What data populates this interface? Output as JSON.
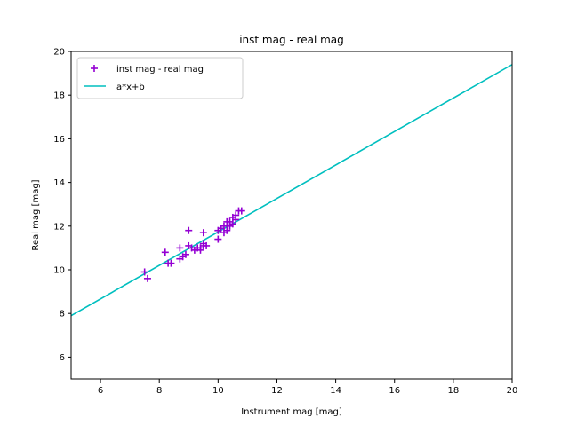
{
  "chart_data": {
    "type": "scatter",
    "title": "inst mag - real mag",
    "xlabel": "Instrument mag [mag]",
    "ylabel": "Real mag [mag]",
    "xlim": [
      5,
      20
    ],
    "ylim": [
      5,
      20
    ],
    "xticks": [
      6,
      8,
      10,
      12,
      14,
      16,
      18,
      20
    ],
    "yticks": [
      6,
      8,
      10,
      12,
      14,
      16,
      18,
      20
    ],
    "grid": false,
    "legend_position": "top-left",
    "series": [
      {
        "name": "inst mag - real mag",
        "kind": "scatter",
        "marker": "plus",
        "color": "#9400d3",
        "x": [
          7.5,
          7.6,
          8.2,
          8.3,
          8.4,
          8.7,
          8.7,
          8.8,
          8.9,
          9.0,
          9.0,
          9.1,
          9.2,
          9.3,
          9.4,
          9.4,
          9.5,
          9.5,
          9.5,
          9.6,
          10.0,
          10.0,
          10.1,
          10.2,
          10.2,
          10.3,
          10.3,
          10.4,
          10.4,
          10.5,
          10.5,
          10.6,
          10.6,
          10.7,
          10.8
        ],
        "y": [
          9.9,
          9.6,
          10.8,
          10.3,
          10.3,
          11.0,
          10.5,
          10.6,
          10.7,
          11.8,
          11.1,
          11.0,
          10.9,
          11.0,
          11.0,
          10.9,
          11.7,
          11.2,
          11.1,
          11.1,
          11.4,
          11.8,
          11.9,
          11.7,
          12.0,
          11.8,
          12.2,
          12.2,
          12.0,
          12.1,
          12.4,
          12.5,
          12.3,
          12.7,
          12.7
        ]
      },
      {
        "name": "a*x+b",
        "kind": "line",
        "color": "#00bfbf",
        "x": [
          5,
          20
        ],
        "y": [
          7.9,
          19.4
        ]
      }
    ]
  }
}
